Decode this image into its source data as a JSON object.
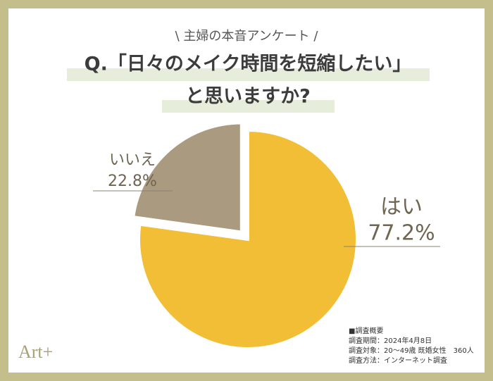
{
  "chart_data": {
    "type": "pie",
    "subtitle": "\\ 主婦の本音アンケート /",
    "title_lines": [
      "Q.「日々のメイク時間を短縮したい」",
      "と思いますか?"
    ],
    "categories": [
      "はい",
      "いいえ"
    ],
    "values": [
      77.2,
      22.8
    ],
    "value_labels": [
      "77.2%",
      "22.8%"
    ],
    "colors": [
      "#f2be35",
      "#a99a80"
    ],
    "notes": [
      "■調査概要",
      "調査期間：2024年4月8日",
      "調査対象：20～49歳 既婚女性　360人",
      "調査方法：インターネット調査"
    ],
    "logo": "Art+"
  }
}
